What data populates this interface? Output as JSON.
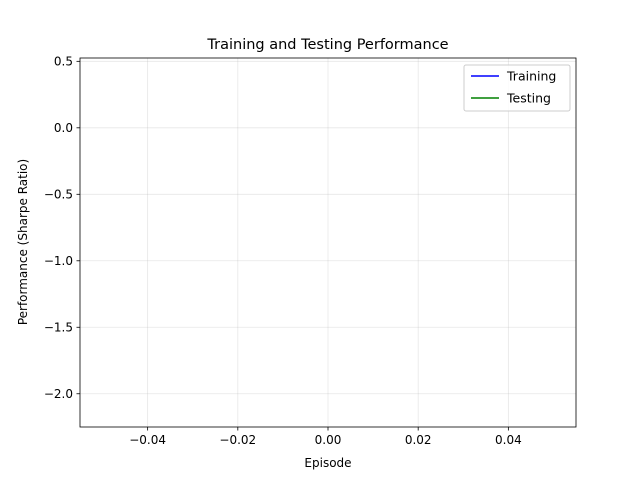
{
  "chart_data": {
    "type": "line",
    "title": "Training and Testing Performance",
    "xlabel": "Episode",
    "ylabel": "Performance (Sharpe Ratio)",
    "xlim": [
      -0.055,
      0.055
    ],
    "ylim": [
      -2.25,
      0.525
    ],
    "xticks": [
      -0.04,
      -0.02,
      0.0,
      0.02,
      0.04
    ],
    "xtick_labels": [
      "−0.04",
      "−0.02",
      "0.00",
      "0.02",
      "0.04"
    ],
    "yticks": [
      0.5,
      0.0,
      -0.5,
      -1.0,
      -1.5,
      -2.0
    ],
    "ytick_labels": [
      "0.5",
      "0.0",
      "−0.5",
      "−1.0",
      "−1.5",
      "−2.0"
    ],
    "grid": true,
    "legend_position": "top-right",
    "series": [
      {
        "name": "Training",
        "color": "#0000ff",
        "x": [],
        "y": []
      },
      {
        "name": "Testing",
        "color": "#008000",
        "x": [],
        "y": []
      }
    ]
  }
}
